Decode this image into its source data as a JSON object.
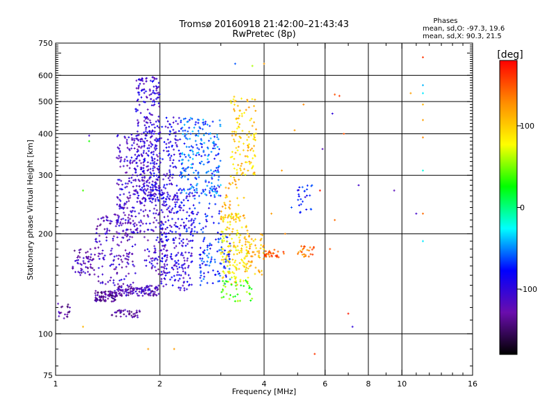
{
  "chart_data": {
    "type": "scatter",
    "title": "Tromsø 20160918 21:42:00–21:43:43",
    "subtitle": "RwPretec (8p)",
    "xlabel": "Frequency [MHz]",
    "ylabel": "Stationary phase Virtual Height [km]",
    "x_scale": "log",
    "y_scale": "log",
    "xlim": [
      1,
      16
    ],
    "ylim": [
      75,
      750
    ],
    "x_ticks": [
      1,
      2,
      4,
      6,
      8,
      10,
      16
    ],
    "x_tick_labels": [
      "1",
      "2",
      "4",
      "6",
      "8",
      "10",
      "16"
    ],
    "y_ticks": [
      75,
      100,
      200,
      300,
      400,
      500,
      600,
      750
    ],
    "y_tick_labels": [
      "75",
      "100",
      "200",
      "300",
      "400",
      "500",
      "600",
      "750"
    ],
    "x_gridlines": [
      2,
      4,
      6,
      8,
      10
    ],
    "y_gridlines": [
      100,
      200,
      300,
      400,
      500,
      600
    ],
    "grid": true,
    "stats": {
      "heading": "Phases",
      "line_o": "mean, sd,O: -97.3, 19.6",
      "line_x": "mean, sd,X: 90.3, 21.5"
    },
    "colorbar": {
      "label": "[deg]",
      "range": [
        -180,
        180
      ],
      "ticks": [
        100,
        0,
        -100
      ],
      "tick_labels": [
        "100",
        "0",
        "-100"
      ],
      "colors": [
        "#000000",
        "#6a0dad",
        "#0000ff",
        "#00ffff",
        "#00ff00",
        "#ffff00",
        "#ff8c00",
        "#ff0000"
      ]
    },
    "clusters": [
      {
        "f": [
          1.0,
          1.1
        ],
        "h": [
          110,
          125
        ],
        "phase": -130,
        "n": 20
      },
      {
        "f": [
          1.12,
          1.3
        ],
        "h": [
          150,
          180
        ],
        "phase": -125,
        "n": 60
      },
      {
        "f": [
          1.3,
          1.5
        ],
        "h": [
          125,
          135
        ],
        "phase": -130,
        "n": 90
      },
      {
        "f": [
          1.45,
          1.75
        ],
        "h": [
          112,
          118
        ],
        "phase": -135,
        "n": 40
      },
      {
        "f": [
          1.5,
          2.0
        ],
        "h": [
          130,
          140
        ],
        "phase": -120,
        "n": 120
      },
      {
        "f": [
          1.3,
          1.7
        ],
        "h": [
          140,
          230
        ],
        "phase": -115,
        "n": 160
      },
      {
        "f": [
          1.5,
          1.8
        ],
        "h": [
          200,
          400
        ],
        "phase": -110,
        "n": 220
      },
      {
        "f": [
          1.7,
          2.0
        ],
        "h": [
          250,
          600
        ],
        "phase": -105,
        "n": 220
      },
      {
        "f": [
          1.8,
          2.1
        ],
        "h": [
          150,
          280
        ],
        "phase": -110,
        "n": 120
      },
      {
        "f": [
          2.0,
          2.5
        ],
        "h": [
          135,
          260
        ],
        "phase": -100,
        "n": 220
      },
      {
        "f": [
          1.8,
          2.3
        ],
        "h": [
          250,
          450
        ],
        "phase": -95,
        "n": 200
      },
      {
        "f": [
          2.3,
          3.0
        ],
        "h": [
          260,
          450
        ],
        "phase": -60,
        "n": 220
      },
      {
        "f": [
          2.6,
          3.2
        ],
        "h": [
          140,
          200
        ],
        "phase": -70,
        "n": 100
      },
      {
        "f": [
          3.0,
          3.6
        ],
        "h": [
          140,
          230
        ],
        "phase": 90,
        "n": 160
      },
      {
        "f": [
          3.0,
          3.7
        ],
        "h": [
          125,
          145
        ],
        "phase": 40,
        "n": 40
      },
      {
        "f": [
          3.2,
          3.8
        ],
        "h": [
          300,
          520
        ],
        "phase": 100,
        "n": 120
      },
      {
        "f": [
          3.5,
          4.0
        ],
        "h": [
          150,
          200
        ],
        "phase": 110,
        "n": 60
      },
      {
        "f": [
          4.0,
          4.6
        ],
        "h": [
          170,
          180
        ],
        "phase": 150,
        "n": 30
      },
      {
        "f": [
          5.0,
          5.6
        ],
        "h": [
          170,
          185
        ],
        "phase": 140,
        "n": 25
      },
      {
        "f": [
          5.0,
          5.5
        ],
        "h": [
          230,
          280
        ],
        "phase": -80,
        "n": 25
      },
      {
        "f": [
          3.0,
          3.5
        ],
        "h": [
          220,
          300
        ],
        "phase": 115,
        "n": 40
      },
      {
        "f": [
          2.2,
          3.0
        ],
        "h": [
          200,
          280
        ],
        "phase": -80,
        "n": 70
      }
    ],
    "scattered_points": [
      {
        "f": 1.25,
        "h": 395,
        "phase": -110
      },
      {
        "f": 1.25,
        "h": 380,
        "phase": 30
      },
      {
        "f": 1.2,
        "h": 270,
        "phase": 40
      },
      {
        "f": 1.2,
        "h": 105,
        "phase": 110
      },
      {
        "f": 1.85,
        "h": 90,
        "phase": 120
      },
      {
        "f": 2.2,
        "h": 90,
        "phase": 120
      },
      {
        "f": 5.6,
        "h": 87,
        "phase": 160
      },
      {
        "f": 6.3,
        "h": 460,
        "phase": -100
      },
      {
        "f": 6.4,
        "h": 525,
        "phase": 150
      },
      {
        "f": 6.6,
        "h": 520,
        "phase": 160
      },
      {
        "f": 6.8,
        "h": 400,
        "phase": 150
      },
      {
        "f": 7.0,
        "h": 115,
        "phase": 170
      },
      {
        "f": 7.2,
        "h": 105,
        "phase": -100
      },
      {
        "f": 6.2,
        "h": 180,
        "phase": 150
      },
      {
        "f": 6.4,
        "h": 220,
        "phase": 140
      },
      {
        "f": 5.8,
        "h": 270,
        "phase": 170
      },
      {
        "f": 5.5,
        "h": 280,
        "phase": -60
      },
      {
        "f": 5.9,
        "h": 360,
        "phase": -120
      },
      {
        "f": 9.5,
        "h": 270,
        "phase": -120
      },
      {
        "f": 10.6,
        "h": 530,
        "phase": 120
      },
      {
        "f": 11.0,
        "h": 230,
        "phase": -110
      },
      {
        "f": 11.5,
        "h": 310,
        "phase": -20
      },
      {
        "f": 11.5,
        "h": 560,
        "phase": -40
      },
      {
        "f": 11.5,
        "h": 530,
        "phase": -30
      },
      {
        "f": 11.5,
        "h": 490,
        "phase": 110
      },
      {
        "f": 11.5,
        "h": 440,
        "phase": 120
      },
      {
        "f": 11.5,
        "h": 390,
        "phase": 130
      },
      {
        "f": 11.5,
        "h": 680,
        "phase": 160
      },
      {
        "f": 11.5,
        "h": 190,
        "phase": -30
      },
      {
        "f": 11.5,
        "h": 230,
        "phase": 140
      },
      {
        "f": 4.5,
        "h": 310,
        "phase": 120
      },
      {
        "f": 4.2,
        "h": 230,
        "phase": 120
      },
      {
        "f": 4.6,
        "h": 200,
        "phase": 130
      },
      {
        "f": 4.8,
        "h": 240,
        "phase": -60
      },
      {
        "f": 4.0,
        "h": 650,
        "phase": 120
      },
      {
        "f": 3.7,
        "h": 640,
        "phase": 60
      },
      {
        "f": 3.3,
        "h": 650,
        "phase": -60
      },
      {
        "f": 5.2,
        "h": 490,
        "phase": 130
      },
      {
        "f": 4.9,
        "h": 410,
        "phase": 120
      },
      {
        "f": 7.5,
        "h": 280,
        "phase": -110
      }
    ]
  }
}
